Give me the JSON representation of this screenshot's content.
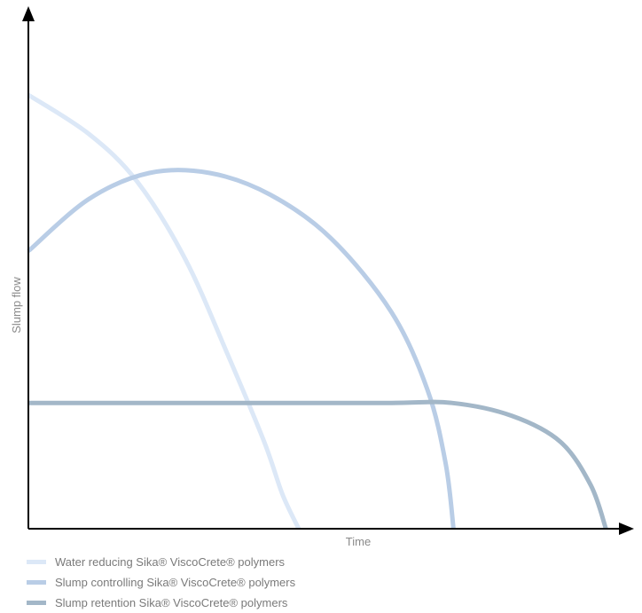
{
  "chart_data": {
    "type": "line",
    "xlabel": "Time",
    "ylabel": "Slump flow",
    "xlim": [
      0,
      100
    ],
    "ylim": [
      0,
      100
    ],
    "grid": false,
    "legend_position": "bottom-left",
    "series": [
      {
        "name": "Water reducing Sika® ViscoCrete® polymers",
        "color": "#dce8f7",
        "x": [
          0,
          10,
          18,
          26,
          33,
          39,
          42,
          44.7
        ],
        "y": [
          100,
          91,
          80,
          62,
          40,
          20,
          8,
          0
        ]
      },
      {
        "name": "Slump controlling Sika® ViscoCrete® polymers",
        "color": "#b9cde6",
        "x": [
          0,
          10,
          20,
          30,
          40,
          50,
          60,
          66,
          69,
          70.3
        ],
        "y": [
          64,
          76,
          82,
          82,
          77,
          67,
          50,
          32,
          15,
          0
        ]
      },
      {
        "name": "Slump retention Sika® ViscoCrete® polymers",
        "color": "#a3b7c8",
        "x": [
          0,
          20,
          40,
          60,
          70,
          80,
          88,
          93,
          95.5
        ],
        "y": [
          29,
          29,
          29,
          29,
          29,
          26,
          20,
          10,
          0
        ]
      }
    ]
  }
}
